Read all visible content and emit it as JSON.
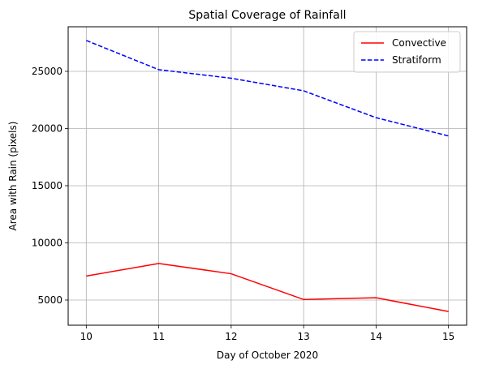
{
  "chart_data": {
    "type": "line",
    "title": "Spatial Coverage of Rainfall",
    "xlabel": "Day of October 2020",
    "ylabel": "Area with Rain (pixels)",
    "x": [
      10,
      11,
      12,
      13,
      14,
      15
    ],
    "xticks": [
      "10",
      "11",
      "12",
      "13",
      "14",
      "15"
    ],
    "yticks": [
      5000,
      10000,
      15000,
      20000,
      25000
    ],
    "ytick_labels": [
      "5000",
      "10000",
      "15000",
      "20000",
      "25000"
    ],
    "xlim": [
      9.75,
      15.25
    ],
    "ylim": [
      2800,
      28900
    ],
    "grid": true,
    "legend_position": "top-right",
    "series": [
      {
        "name": "Convective",
        "color": "#ff0000",
        "style": "solid",
        "values": [
          7100,
          8200,
          7300,
          5050,
          5200,
          4000
        ]
      },
      {
        "name": "Stratiform",
        "color": "#0000ff",
        "style": "dashed",
        "values": [
          27700,
          25150,
          24400,
          23300,
          20950,
          19350
        ]
      }
    ]
  }
}
